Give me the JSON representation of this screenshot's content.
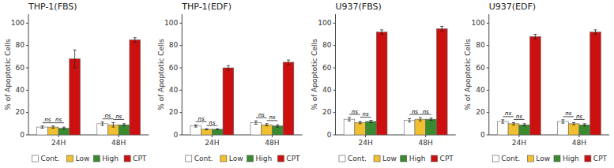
{
  "chart_data": [
    {
      "type": "bar",
      "title": "THP-1(FBS)",
      "y_label": "% of Apoptotic Cells",
      "categories": [
        "24H",
        "48H"
      ],
      "series": [
        {
          "name": "Cont.",
          "color": "#ffffff",
          "values": [
            7,
            10
          ],
          "errors": [
            1,
            1.5
          ]
        },
        {
          "name": "Low",
          "color": "#f0c030",
          "values": [
            7,
            9
          ],
          "errors": [
            1,
            2
          ]
        },
        {
          "name": "High",
          "color": "#3a8a30",
          "values": [
            6,
            9
          ],
          "errors": [
            1,
            1
          ]
        },
        {
          "name": "CPT",
          "color": "#cc1010",
          "values": [
            68,
            85
          ],
          "errors": [
            8,
            2
          ]
        }
      ],
      "annotations": [
        {
          "text": "ns",
          "category": "24H",
          "from": "Cont.",
          "to": "Low"
        },
        {
          "text": "ns",
          "category": "24H",
          "from": "Low",
          "to": "High"
        },
        {
          "text": "ns",
          "category": "48H",
          "from": "Cont.",
          "to": "Low"
        },
        {
          "text": "ns",
          "category": "48H",
          "from": "Low",
          "to": "High"
        }
      ],
      "ylim": [
        0,
        108
      ],
      "yticks": [
        0,
        20,
        40,
        60,
        80,
        100
      ],
      "grid": false,
      "legend": "bottom"
    },
    {
      "type": "bar",
      "title": "THP-1(EDF)",
      "y_label": "% of Apoptotic Cells",
      "categories": [
        "24H",
        "48H"
      ],
      "series": [
        {
          "name": "Cont.",
          "color": "#ffffff",
          "values": [
            8,
            11
          ],
          "errors": [
            1,
            1.5
          ]
        },
        {
          "name": "Low",
          "color": "#f0c030",
          "values": [
            5,
            9
          ],
          "errors": [
            0.5,
            1
          ]
        },
        {
          "name": "High",
          "color": "#3a8a30",
          "values": [
            5,
            8
          ],
          "errors": [
            0.5,
            1
          ]
        },
        {
          "name": "CPT",
          "color": "#cc1010",
          "values": [
            60,
            65
          ],
          "errors": [
            2,
            2
          ]
        }
      ],
      "annotations": [
        {
          "text": "ns",
          "category": "24H",
          "from": "Cont.",
          "to": "Low"
        },
        {
          "text": "ns",
          "category": "24H",
          "from": "Low",
          "to": "High"
        },
        {
          "text": "ns",
          "category": "48H",
          "from": "Cont.",
          "to": "Low"
        },
        {
          "text": "ns",
          "category": "48H",
          "from": "Low",
          "to": "High"
        }
      ],
      "ylim": [
        0,
        108
      ],
      "yticks": [
        0,
        20,
        40,
        60,
        80,
        100
      ],
      "grid": false,
      "legend": "bottom"
    },
    {
      "type": "bar",
      "title": "U937(FBS)",
      "y_label": "% of Apoptotic Cells",
      "categories": [
        "24H",
        "48H"
      ],
      "series": [
        {
          "name": "Cont.",
          "color": "#ffffff",
          "values": [
            14,
            13
          ],
          "errors": [
            1.5,
            1.5
          ]
        },
        {
          "name": "Low",
          "color": "#f0c030",
          "values": [
            11,
            14
          ],
          "errors": [
            1,
            1.5
          ]
        },
        {
          "name": "High",
          "color": "#3a8a30",
          "values": [
            12,
            14
          ],
          "errors": [
            1,
            1
          ]
        },
        {
          "name": "CPT",
          "color": "#cc1010",
          "values": [
            92,
            95
          ],
          "errors": [
            2,
            2
          ]
        }
      ],
      "annotations": [
        {
          "text": "ns",
          "category": "24H",
          "from": "Cont.",
          "to": "Low"
        },
        {
          "text": "ns",
          "category": "24H",
          "from": "Low",
          "to": "High"
        },
        {
          "text": "ns",
          "category": "48H",
          "from": "Cont.",
          "to": "Low"
        },
        {
          "text": "ns",
          "category": "48H",
          "from": "Low",
          "to": "High"
        }
      ],
      "ylim": [
        0,
        108
      ],
      "yticks": [
        0,
        20,
        40,
        60,
        80,
        100
      ],
      "grid": false,
      "legend": "bottom"
    },
    {
      "type": "bar",
      "title": "U937(EDF)",
      "y_label": "% of Apoptotic Cells",
      "categories": [
        "24H",
        "48H"
      ],
      "series": [
        {
          "name": "Cont.",
          "color": "#ffffff",
          "values": [
            12,
            12
          ],
          "errors": [
            1.5,
            1.5
          ]
        },
        {
          "name": "Low",
          "color": "#f0c030",
          "values": [
            10,
            10
          ],
          "errors": [
            1,
            1
          ]
        },
        {
          "name": "High",
          "color": "#3a8a30",
          "values": [
            9,
            9
          ],
          "errors": [
            1,
            1
          ]
        },
        {
          "name": "CPT",
          "color": "#cc1010",
          "values": [
            88,
            92
          ],
          "errors": [
            2,
            2
          ]
        }
      ],
      "annotations": [
        {
          "text": "ns",
          "category": "24H",
          "from": "Cont.",
          "to": "Low"
        },
        {
          "text": "ns",
          "category": "24H",
          "from": "Low",
          "to": "High"
        },
        {
          "text": "ns",
          "category": "48H",
          "from": "Cont.",
          "to": "Low"
        },
        {
          "text": "ns",
          "category": "48H",
          "from": "Low",
          "to": "High"
        }
      ],
      "ylim": [
        0,
        108
      ],
      "yticks": [
        0,
        20,
        40,
        60,
        80,
        100
      ],
      "grid": false,
      "legend": "bottom"
    }
  ]
}
